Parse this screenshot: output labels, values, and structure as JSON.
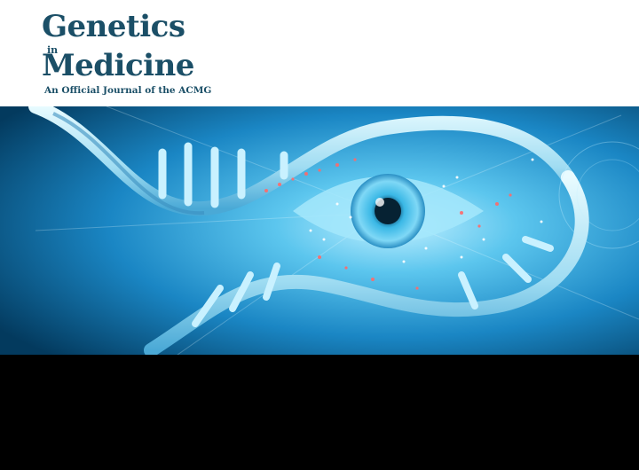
{
  "journal": {
    "title_line1": "Genetics",
    "title_connector": "in",
    "title_line2": "Medicine",
    "tagline": "An Official Journal of the ACMG"
  },
  "colors": {
    "brand": "#1b4f67",
    "hero_light": "#bfefff",
    "hero_mid": "#2aa6d6",
    "hero_dark": "#033a5e",
    "accent_particles": "#ff6a6a",
    "band": "#000000"
  },
  "hero_image": {
    "icons": [
      "dna-helix-icon",
      "eye-icon",
      "particle-field"
    ]
  }
}
